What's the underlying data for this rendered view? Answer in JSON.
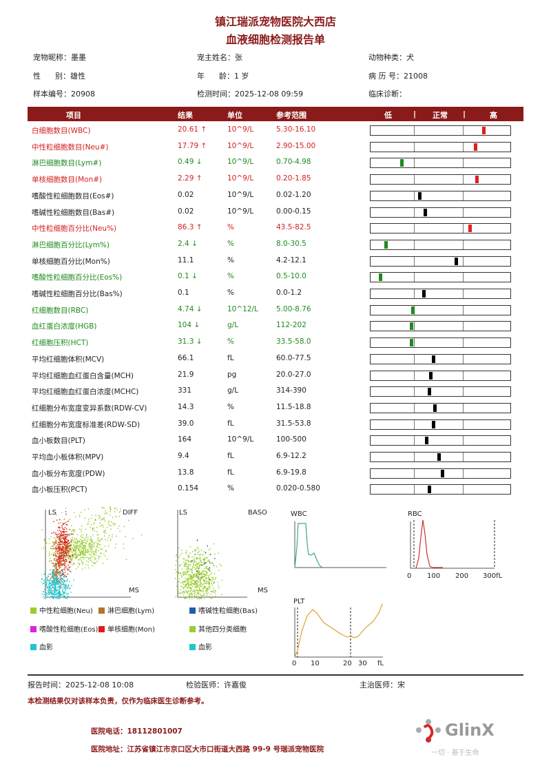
{
  "header": {
    "hospital": "镇江瑞派宠物医院大西店",
    "report_title": "血液细胞检测报告单"
  },
  "patient": {
    "pet_name": "宠物昵称：墨墨",
    "owner": "宠主姓名：张",
    "species": "动物种类：犬",
    "sex": "性      别：雄性",
    "age": "年      龄：1 岁",
    "record_no": "病 历 号：21008",
    "sample_no": "样本编号：20908",
    "test_time": "检测时间：2025-12-08 09:59",
    "diagnosis": "临床诊断："
  },
  "table": {
    "columns": {
      "item": "项目",
      "result": "结果",
      "unit": "单位",
      "range": "参考范围",
      "low": "低",
      "sep": "|",
      "normal": "正常",
      "high": "高"
    },
    "colors": {
      "high": "#e02020",
      "low": "#1f8a1f",
      "normal": "#000000"
    },
    "rows": [
      {
        "name": "白细胞数目(WBC)",
        "result": "20.61 ↑",
        "unit": "10^9/L",
        "range": "5.30-16.10",
        "status": "high",
        "pos": 0.81
      },
      {
        "name": "中性粒细胞数目(Neu#)",
        "result": "17.79 ↑",
        "unit": "10^9/L",
        "range": "2.90-15.00",
        "status": "high",
        "pos": 0.75
      },
      {
        "name": "淋巴细胞数目(Lym#)",
        "result": "0.49 ↓",
        "unit": "10^9/L",
        "range": "0.70-4.98",
        "status": "low",
        "pos": 0.22
      },
      {
        "name": "单核细胞数目(Mon#)",
        "result": "2.29 ↑",
        "unit": "10^9/L",
        "range": "0.20-1.85",
        "status": "high",
        "pos": 0.76
      },
      {
        "name": "嗜酸性粒细胞数目(Eos#)",
        "result": "0.02",
        "unit": "10^9/L",
        "range": "0.02-1.20",
        "status": "normal",
        "pos": 0.35
      },
      {
        "name": "嗜碱性粒细胞数目(Bas#)",
        "result": "0.02",
        "unit": "10^9/L",
        "range": "0.00-0.15",
        "status": "normal",
        "pos": 0.39
      },
      {
        "name": "中性粒细胞百分比(Neu%)",
        "result": "86.3 ↑",
        "unit": "%",
        "range": "43.5-82.5",
        "status": "high",
        "pos": 0.71
      },
      {
        "name": "淋巴细胞百分比(Lym%)",
        "result": "2.4 ↓",
        "unit": "%",
        "range": "8.0-30.5",
        "status": "low",
        "pos": 0.11
      },
      {
        "name": "单核细胞百分比(Mon%)",
        "result": "11.1",
        "unit": "%",
        "range": "4.2-12.1",
        "status": "normal",
        "pos": 0.61
      },
      {
        "name": "嗜酸性粒细胞百分比(Eos%)",
        "result": "0.1 ↓",
        "unit": "%",
        "range": "0.5-10.0",
        "status": "low",
        "pos": 0.07
      },
      {
        "name": "嗜碱性粒细胞百分比(Bas%)",
        "result": "0.1",
        "unit": "%",
        "range": "0.0-1.2",
        "status": "normal",
        "pos": 0.38
      },
      {
        "name": "红细胞数目(RBC)",
        "result": "4.74 ↓",
        "unit": "10^12/L",
        "range": "5.00-8.76",
        "status": "low",
        "pos": 0.3
      },
      {
        "name": "血红蛋白浓度(HGB)",
        "result": "104 ↓",
        "unit": "g/L",
        "range": "112-202",
        "status": "low",
        "pos": 0.29
      },
      {
        "name": "红细胞压积(HCT)",
        "result": "31.3 ↓",
        "unit": "%",
        "range": "33.5-58.0",
        "status": "low",
        "pos": 0.29
      },
      {
        "name": "平均红细胞体积(MCV)",
        "result": "66.1",
        "unit": "fL",
        "range": "60.0-77.5",
        "status": "normal",
        "pos": 0.45
      },
      {
        "name": "平均红细胞血红蛋白含量(MCH)",
        "result": "21.9",
        "unit": "pg",
        "range": "20.0-27.0",
        "status": "normal",
        "pos": 0.43
      },
      {
        "name": "平均红细胞血红蛋白浓度(MCHC)",
        "result": "331",
        "unit": "g/L",
        "range": "314-390",
        "status": "normal",
        "pos": 0.42
      },
      {
        "name": "红细胞分布宽度变异系数(RDW-CV)",
        "result": "14.3",
        "unit": "%",
        "range": "11.5-18.8",
        "status": "normal",
        "pos": 0.46
      },
      {
        "name": "红细胞分布宽度标准差(RDW-SD)",
        "result": "39.0",
        "unit": "fL",
        "range": "31.5-53.8",
        "status": "normal",
        "pos": 0.45
      },
      {
        "name": "血小板数目(PLT)",
        "result": "164",
        "unit": "10^9/L",
        "range": "100-500",
        "status": "normal",
        "pos": 0.4
      },
      {
        "name": "平均血小板体积(MPV)",
        "result": "9.4",
        "unit": "fL",
        "range": "6.9-12.2",
        "status": "normal",
        "pos": 0.49
      },
      {
        "name": "血小板分布宽度(PDW)",
        "result": "13.8",
        "unit": "fL",
        "range": "6.9-19.8",
        "status": "normal",
        "pos": 0.51
      },
      {
        "name": "血小板压积(PCT)",
        "result": "0.154",
        "unit": "%",
        "range": "0.020-0.580",
        "status": "normal",
        "pos": 0.42
      }
    ]
  },
  "graphs": {
    "diff": {
      "y": "LS",
      "title": "DIFF",
      "x": "MS"
    },
    "baso": {
      "y": "LS",
      "title": "BASO",
      "x": "MS"
    },
    "wbc": {
      "title": "WBC"
    },
    "rbc": {
      "title": "RBC",
      "ticks": [
        "0",
        "100",
        "200",
        "300fL"
      ]
    },
    "plt": {
      "title": "PLT",
      "ticks": [
        "0",
        "10",
        "20",
        "30",
        "fL"
      ]
    },
    "legend": [
      {
        "label": "中性粒细胞(Neu)",
        "color": "#9acd32"
      },
      {
        "label": "淋巴细胞(Lym)",
        "color": "#b8732a"
      },
      {
        "label": "嗜碱性粒细胞(Bas)",
        "color": "#1f5fa8"
      },
      {
        "label": "嗜酸性粒细胞(Eos)",
        "color": "#e020e0"
      },
      {
        "label": "单核细胞(Mon)",
        "color": "#dd1c1c"
      },
      {
        "label": "其他四分类细胞",
        "color": "#9acd32"
      },
      {
        "label": "血影",
        "color": "#22c4cc"
      },
      {
        "label": "血影",
        "color": "#22c4cc"
      }
    ]
  },
  "footer": {
    "report_time": "报告时间：2025-12-08 10:08",
    "examiner": "检验医师：许嘉俊",
    "doctor": "主治医师：宋",
    "disclaimer": "本检测结果仅对该样本负责，仅作为临床医生诊断参考。",
    "phone": "医院电话：18112801007",
    "address": "医院地址：江苏省镇江市京口区大市口街道大西路 99-9 号瑞派宠物医院",
    "logo": "GlinX",
    "slogan": "一切 · 基于生命"
  }
}
